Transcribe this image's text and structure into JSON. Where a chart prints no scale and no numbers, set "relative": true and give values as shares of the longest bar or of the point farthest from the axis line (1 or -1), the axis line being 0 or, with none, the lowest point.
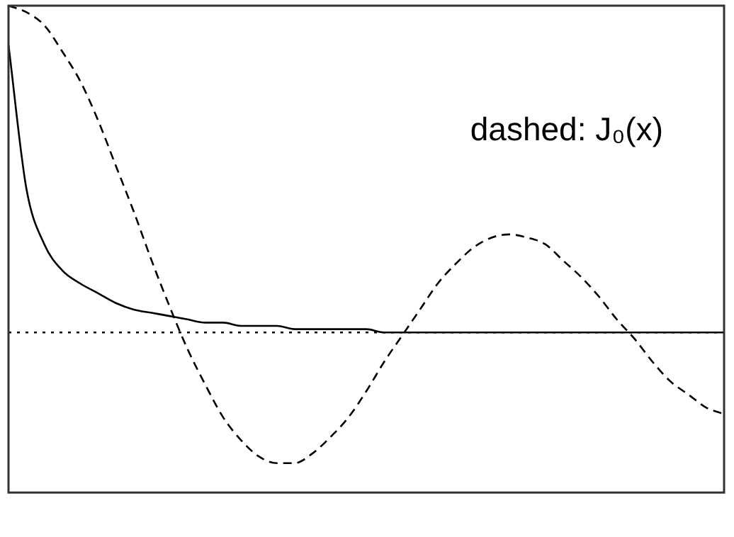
{
  "chart_data": {
    "type": "line",
    "relative": true,
    "grid": false,
    "legend": false,
    "marker": "none",
    "categories": [
      null,
      null,
      null,
      null,
      null,
      null,
      null,
      null,
      null,
      null,
      null,
      null,
      null,
      null,
      null,
      null,
      null,
      null,
      null,
      null,
      null,
      null,
      null,
      null,
      null,
      null,
      null,
      null,
      null,
      null,
      null,
      null,
      null,
      null,
      null,
      null,
      null,
      null,
      null,
      null,
      null
    ],
    "series": [
      {
        "color": "#000000",
        "line_style": "solid",
        "values": [
          0.88,
          0.44,
          0.27,
          0.19,
          0.15,
          0.12,
          0.09,
          0.07,
          0.06,
          0.05,
          0.04,
          0.03,
          0.03,
          0.02,
          0.02,
          0.02,
          0.01,
          0.01,
          0.01,
          0.01,
          0.01,
          0,
          0,
          0,
          0,
          0,
          0,
          0,
          0,
          0,
          0,
          0,
          0,
          0,
          0,
          0,
          0,
          0,
          0,
          0,
          0
        ]
      },
      {
        "color": "#000000",
        "line_style": "dashed",
        "values": [
          1,
          0.98,
          0.94,
          0.86,
          0.77,
          0.65,
          0.51,
          0.37,
          0.22,
          0.08,
          -0.05,
          -0.16,
          -0.26,
          -0.33,
          -0.38,
          -0.4,
          -0.4,
          -0.37,
          -0.32,
          -0.26,
          -0.18,
          -0.09,
          -0.01,
          0.07,
          0.15,
          0.21,
          0.26,
          0.29,
          0.3,
          0.29,
          0.27,
          0.22,
          0.17,
          0.11,
          0.04,
          -0.02,
          -0.09,
          -0.15,
          -0.19,
          -0.23,
          -0.25
        ]
      }
    ],
    "ref_lines": [
      {
        "axis": "y",
        "value": 0,
        "line_style": "dotted",
        "color": "#000000"
      }
    ],
    "annotations": [
      "dashed: J₀(x)"
    ]
  }
}
